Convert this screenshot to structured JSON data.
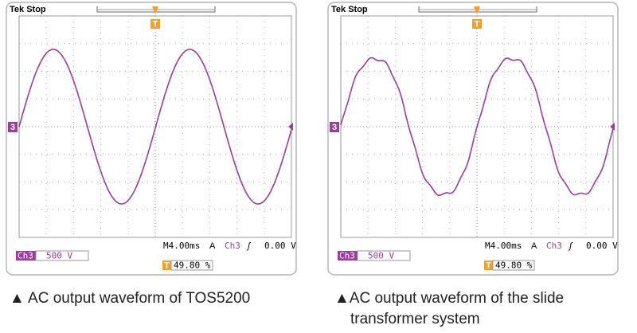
{
  "scopes": [
    {
      "status": "Tek Stop",
      "trigger_marker": "T",
      "channel_marker": "3",
      "timebase": "M4.00ms",
      "trigger_mode": "A",
      "trigger_source": "Ch3",
      "trigger_slope": "ʃ",
      "trigger_level": "0.00 V",
      "channel": "Ch3",
      "scale": "500 V",
      "position_marker": "T",
      "position": "49.80 %",
      "caption": "▲ AC output waveform of TOS5200"
    },
    {
      "status": "Tek Stop",
      "trigger_marker": "T",
      "channel_marker": "3",
      "timebase": "M4.00ms",
      "trigger_mode": "A",
      "trigger_source": "Ch3",
      "trigger_slope": "ʃ",
      "trigger_level": "0.00 V",
      "channel": "Ch3",
      "scale": "500 V",
      "position_marker": "T",
      "position": "49.80 %",
      "caption": "▲AC output waveform of the slide transformer system"
    }
  ]
}
